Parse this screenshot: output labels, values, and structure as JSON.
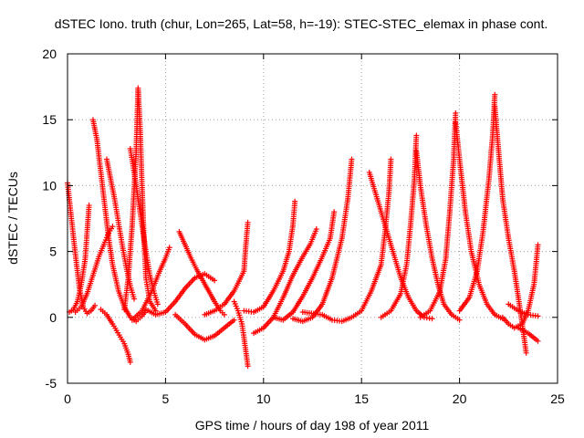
{
  "chart_data": {
    "type": "scatter",
    "title": "dSTEC Iono. truth (chur, Lon=265, Lat=58, h=-19): STEC-STEC_elemax in phase cont.",
    "xlabel": "GPS time / hours of day 198 of year 2011",
    "ylabel": "dSTEC  / TECUs",
    "xlim": [
      0,
      25
    ],
    "ylim": [
      -5,
      20
    ],
    "xticks": [
      0,
      5,
      10,
      15,
      20,
      25
    ],
    "yticks": [
      -5,
      0,
      5,
      10,
      15,
      20
    ],
    "grid": true,
    "marker": "plus",
    "color": "#ff0000",
    "series": [
      {
        "values": [
          [
            0.0,
            10.2
          ],
          [
            0.2,
            7.5
          ],
          [
            0.4,
            4.8
          ],
          [
            0.6,
            2.3
          ],
          [
            0.8,
            0.8
          ],
          [
            1.0,
            0.3
          ],
          [
            1.2,
            0.5
          ],
          [
            1.4,
            0.9
          ]
        ]
      },
      {
        "values": [
          [
            0.1,
            0.4
          ],
          [
            0.3,
            0.6
          ],
          [
            0.5,
            1.2
          ],
          [
            0.7,
            2.5
          ],
          [
            0.9,
            4.4
          ],
          [
            1.0,
            6.5
          ],
          [
            1.1,
            8.5
          ]
        ]
      },
      {
        "values": [
          [
            0.4,
            0.4
          ],
          [
            0.7,
            0.8
          ],
          [
            1.0,
            1.8
          ],
          [
            1.3,
            3.2
          ],
          [
            1.6,
            4.6
          ],
          [
            1.9,
            5.7
          ],
          [
            2.1,
            6.4
          ],
          [
            2.3,
            6.9
          ]
        ]
      },
      {
        "values": [
          [
            1.3,
            15.0
          ],
          [
            1.5,
            13.5
          ],
          [
            1.7,
            11.0
          ],
          [
            1.9,
            8.5
          ],
          [
            2.1,
            6.0
          ],
          [
            2.3,
            4.0
          ],
          [
            2.6,
            2.0
          ],
          [
            2.9,
            0.8
          ],
          [
            3.2,
            0.0
          ],
          [
            3.5,
            -0.3
          ],
          [
            3.8,
            0.1
          ],
          [
            4.0,
            0.5
          ]
        ]
      },
      {
        "values": [
          [
            2.0,
            12.0
          ],
          [
            2.2,
            10.5
          ],
          [
            2.4,
            9.0
          ],
          [
            2.6,
            7.2
          ],
          [
            2.8,
            5.4
          ],
          [
            3.0,
            3.8
          ],
          [
            3.2,
            2.4
          ],
          [
            3.4,
            1.4
          ]
        ]
      },
      {
        "values": [
          [
            1.7,
            0.6
          ],
          [
            2.0,
            0.2
          ],
          [
            2.3,
            -0.5
          ],
          [
            2.5,
            -1.0
          ],
          [
            2.7,
            -1.5
          ],
          [
            2.9,
            -2.0
          ],
          [
            3.1,
            -2.8
          ],
          [
            3.2,
            -3.4
          ]
        ]
      },
      {
        "values": [
          [
            2.9,
            0.6
          ],
          [
            3.1,
            3.0
          ],
          [
            3.3,
            7.0
          ],
          [
            3.5,
            12.5
          ],
          [
            3.6,
            17.4
          ],
          [
            3.7,
            14.5
          ],
          [
            3.8,
            10.0
          ],
          [
            3.9,
            6.0
          ],
          [
            4.0,
            3.0
          ],
          [
            4.2,
            1.2
          ],
          [
            4.5,
            0.5
          ]
        ]
      },
      {
        "values": [
          [
            3.2,
            12.8
          ],
          [
            3.4,
            11.0
          ],
          [
            3.6,
            9.0
          ],
          [
            3.8,
            7.0
          ],
          [
            4.0,
            5.0
          ],
          [
            4.2,
            3.2
          ],
          [
            4.4,
            2.0
          ],
          [
            4.6,
            1.0
          ]
        ]
      },
      {
        "values": [
          [
            3.3,
            -0.2
          ],
          [
            3.8,
            0.5
          ],
          [
            4.3,
            2.0
          ],
          [
            4.7,
            3.5
          ],
          [
            5.0,
            4.5
          ],
          [
            5.2,
            5.3
          ]
        ]
      },
      {
        "values": [
          [
            5.7,
            6.5
          ],
          [
            6.0,
            5.5
          ],
          [
            6.3,
            4.5
          ],
          [
            6.6,
            3.6
          ],
          [
            6.9,
            2.8
          ],
          [
            7.2,
            2.0
          ],
          [
            7.5,
            1.2
          ],
          [
            7.8,
            0.5
          ],
          [
            8.0,
            0.2
          ]
        ]
      },
      {
        "values": [
          [
            4.0,
            0.6
          ],
          [
            4.5,
            0.2
          ],
          [
            5.0,
            0.4
          ],
          [
            5.5,
            1.2
          ],
          [
            6.0,
            2.2
          ],
          [
            6.5,
            3.0
          ],
          [
            7.0,
            3.3
          ],
          [
            7.5,
            2.8
          ]
        ]
      },
      {
        "values": [
          [
            5.5,
            0.2
          ],
          [
            6.0,
            -0.5
          ],
          [
            6.5,
            -1.3
          ],
          [
            7.0,
            -1.7
          ],
          [
            7.5,
            -1.4
          ],
          [
            8.0,
            -0.8
          ],
          [
            8.5,
            -0.2
          ]
        ]
      },
      {
        "values": [
          [
            7.0,
            0.2
          ],
          [
            7.5,
            0.5
          ],
          [
            8.0,
            1.0
          ],
          [
            8.5,
            2.0
          ],
          [
            9.0,
            3.5
          ],
          [
            9.1,
            5.5
          ],
          [
            9.2,
            7.2
          ]
        ]
      },
      {
        "values": [
          [
            8.5,
            1.2
          ],
          [
            8.7,
            0.5
          ],
          [
            8.9,
            -0.5
          ],
          [
            9.0,
            -1.5
          ],
          [
            9.1,
            -2.6
          ],
          [
            9.2,
            -3.7
          ]
        ]
      },
      {
        "values": [
          [
            9.0,
            0.5
          ],
          [
            9.5,
            0.4
          ],
          [
            10.0,
            0.8
          ],
          [
            10.5,
            2.0
          ],
          [
            11.0,
            3.5
          ],
          [
            11.3,
            5.0
          ],
          [
            11.5,
            7.0
          ],
          [
            11.6,
            8.8
          ]
        ]
      },
      {
        "values": [
          [
            9.5,
            -1.2
          ],
          [
            10.0,
            -0.8
          ],
          [
            10.5,
            0.0
          ],
          [
            11.0,
            1.5
          ],
          [
            11.5,
            3.2
          ],
          [
            12.0,
            4.6
          ],
          [
            12.4,
            5.6
          ],
          [
            12.7,
            6.7
          ]
        ]
      },
      {
        "values": [
          [
            10.5,
            0.0
          ],
          [
            11.0,
            -0.2
          ],
          [
            11.5,
            0.4
          ],
          [
            12.0,
            1.6
          ],
          [
            12.5,
            3.0
          ],
          [
            13.0,
            4.6
          ],
          [
            13.4,
            6.0
          ],
          [
            13.6,
            8.0
          ]
        ]
      },
      {
        "values": [
          [
            11.5,
            -0.1
          ],
          [
            12.0,
            -0.3
          ],
          [
            12.5,
            0.0
          ],
          [
            13.0,
            1.0
          ],
          [
            13.5,
            3.0
          ],
          [
            14.0,
            6.0
          ],
          [
            14.3,
            9.0
          ],
          [
            14.5,
            12.0
          ]
        ]
      },
      {
        "values": [
          [
            12.0,
            0.4
          ],
          [
            13.0,
            0.2
          ],
          [
            13.5,
            -0.2
          ],
          [
            14.0,
            -0.3
          ],
          [
            14.5,
            0.0
          ],
          [
            15.0,
            0.5
          ],
          [
            15.5,
            2.0
          ],
          [
            16.0,
            4.0
          ],
          [
            16.2,
            6.5
          ],
          [
            16.4,
            9.5
          ],
          [
            16.5,
            12.0
          ]
        ]
      },
      {
        "values": [
          [
            15.4,
            11.0
          ],
          [
            15.8,
            9.0
          ],
          [
            16.2,
            7.0
          ],
          [
            16.6,
            5.0
          ],
          [
            17.0,
            3.0
          ],
          [
            17.4,
            1.5
          ],
          [
            17.8,
            0.5
          ],
          [
            18.2,
            0.0
          ],
          [
            18.6,
            -0.1
          ]
        ]
      },
      {
        "values": [
          [
            16.0,
            0.0
          ],
          [
            16.5,
            0.5
          ],
          [
            17.0,
            1.8
          ],
          [
            17.3,
            4.0
          ],
          [
            17.5,
            7.0
          ],
          [
            17.7,
            10.5
          ],
          [
            17.8,
            13.8
          ]
        ]
      },
      {
        "values": [
          [
            17.8,
            12.6
          ],
          [
            18.0,
            10.0
          ],
          [
            18.3,
            7.0
          ],
          [
            18.6,
            4.5
          ],
          [
            18.9,
            2.5
          ],
          [
            19.2,
            1.0
          ],
          [
            19.6,
            0.2
          ],
          [
            20.0,
            -0.2
          ]
        ]
      },
      {
        "values": [
          [
            18.0,
            0.0
          ],
          [
            18.5,
            0.5
          ],
          [
            19.0,
            2.0
          ],
          [
            19.3,
            4.5
          ],
          [
            19.5,
            8.0
          ],
          [
            19.7,
            12.0
          ],
          [
            19.8,
            15.5
          ]
        ]
      },
      {
        "values": [
          [
            19.8,
            14.8
          ],
          [
            20.0,
            12.0
          ],
          [
            20.3,
            8.0
          ],
          [
            20.6,
            5.0
          ],
          [
            21.0,
            2.5
          ],
          [
            21.4,
            1.0
          ],
          [
            21.8,
            0.2
          ],
          [
            22.2,
            -0.1
          ]
        ]
      },
      {
        "values": [
          [
            20.0,
            0.5
          ],
          [
            20.5,
            1.5
          ],
          [
            20.9,
            3.5
          ],
          [
            21.2,
            6.5
          ],
          [
            21.5,
            10.5
          ],
          [
            21.7,
            14.0
          ],
          [
            21.8,
            16.9
          ]
        ]
      },
      {
        "values": [
          [
            21.8,
            16.0
          ],
          [
            22.0,
            12.5
          ],
          [
            22.2,
            9.0
          ],
          [
            22.5,
            6.0
          ],
          [
            22.8,
            3.5
          ],
          [
            23.0,
            1.5
          ],
          [
            23.2,
            -0.5
          ],
          [
            23.4,
            -2.7
          ]
        ]
      },
      {
        "values": [
          [
            22.2,
            0.0
          ],
          [
            22.5,
            -0.5
          ],
          [
            22.8,
            -0.8
          ],
          [
            23.2,
            -0.5
          ],
          [
            23.5,
            0.5
          ],
          [
            23.8,
            2.5
          ],
          [
            24.0,
            5.5
          ]
        ]
      },
      {
        "values": [
          [
            22.5,
            1.0
          ],
          [
            23.0,
            0.5
          ],
          [
            23.5,
            0.2
          ],
          [
            24.0,
            0.1
          ]
        ]
      },
      {
        "values": [
          [
            23.0,
            -0.8
          ],
          [
            23.5,
            -1.2
          ],
          [
            24.0,
            -1.8
          ]
        ]
      }
    ]
  }
}
